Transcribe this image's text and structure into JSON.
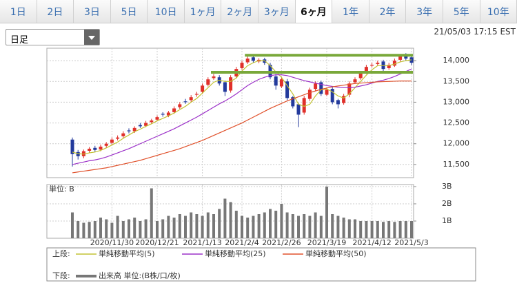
{
  "tabs": {
    "items": [
      "1日",
      "2日",
      "3日",
      "5日",
      "10日",
      "1ヶ月",
      "2ヶ月",
      "3ヶ月",
      "6ヶ月",
      "1年",
      "2年",
      "3年",
      "5年",
      "10年"
    ],
    "selected": 8
  },
  "dropdown": "日足",
  "timestamp": "21/05/03 17:15 EST",
  "legend": {
    "upper": "上段:",
    "lower": "下段:"
  },
  "chart_data": [
    {
      "type": "candlestick",
      "open": [
        12100,
        11800,
        11700,
        11830,
        11900,
        11860,
        11950,
        12020,
        12120,
        12180,
        12320,
        12300,
        12450,
        12430,
        12520,
        12580,
        12720,
        12680,
        12760,
        12880,
        13020,
        13050,
        13180,
        13250,
        13420,
        13580,
        13600,
        13480,
        13280,
        13620,
        13820,
        13960,
        14080,
        13980,
        14030,
        13900,
        13620,
        13380,
        13500,
        13120,
        12950,
        12750,
        13080,
        13320,
        13480,
        13180,
        13320,
        13050,
        12980,
        13180,
        13480,
        13580,
        13720,
        13880,
        13920,
        13980,
        13820,
        13880,
        14020,
        14120,
        14080
      ],
      "high": [
        12150,
        11850,
        11860,
        11920,
        11950,
        11980,
        12040,
        12150,
        12200,
        12300,
        12370,
        12420,
        12500,
        12550,
        12600,
        12680,
        12760,
        12790,
        12900,
        13000,
        13080,
        13170,
        13250,
        13450,
        13600,
        13680,
        13650,
        13520,
        13650,
        13850,
        14000,
        14120,
        14130,
        14060,
        14070,
        13950,
        13680,
        13600,
        13560,
        13150,
        12980,
        13150,
        13350,
        13500,
        13520,
        13350,
        13360,
        13080,
        13200,
        13500,
        13600,
        13750,
        13900,
        13950,
        14000,
        14020,
        13950,
        14050,
        14150,
        14180,
        14120
      ],
      "low": [
        11450,
        11620,
        11650,
        11780,
        11800,
        11820,
        11900,
        11970,
        12080,
        12130,
        12250,
        12260,
        12380,
        12400,
        12480,
        12540,
        12650,
        12640,
        12720,
        12840,
        12960,
        13000,
        13130,
        13200,
        13380,
        13540,
        13400,
        13150,
        13230,
        13580,
        13780,
        13920,
        13950,
        13940,
        13900,
        13550,
        13300,
        13340,
        13050,
        12850,
        12400,
        12700,
        13030,
        13280,
        13150,
        13150,
        12950,
        12850,
        12940,
        13120,
        13450,
        13540,
        13680,
        13840,
        13880,
        13750,
        13780,
        13850,
        13980,
        14000,
        13900
      ],
      "close": [
        11750,
        11700,
        11820,
        11880,
        11850,
        11930,
        12000,
        12100,
        12150,
        12250,
        12300,
        12380,
        12420,
        12500,
        12560,
        12640,
        12700,
        12750,
        12850,
        12950,
        13000,
        13120,
        13200,
        13400,
        13550,
        13620,
        13450,
        13250,
        13600,
        13800,
        13950,
        14050,
        14000,
        14020,
        13950,
        13600,
        13400,
        13550,
        13100,
        12900,
        12700,
        13100,
        13300,
        13450,
        13200,
        13300,
        13000,
        12950,
        13150,
        13450,
        13550,
        13700,
        13850,
        13900,
        13950,
        13800,
        13900,
        14000,
        14100,
        14050,
        13950
      ],
      "up_color": "#e0302a",
      "down_color": "#233a9c",
      "series": [
        {
          "name": "単純移動平均(5)",
          "color": "#c2c232",
          "values": [
            11800,
            11760,
            11750,
            11780,
            11800,
            11840,
            11900,
            11970,
            12040,
            12130,
            12210,
            12290,
            12350,
            12420,
            12480,
            12550,
            12610,
            12670,
            12740,
            12820,
            12900,
            13000,
            13090,
            13220,
            13350,
            13480,
            13530,
            13500,
            13500,
            13580,
            13750,
            13880,
            13950,
            14000,
            14000,
            13880,
            13730,
            13600,
            13400,
            13200,
            12950,
            12900,
            12950,
            13150,
            13300,
            13320,
            13250,
            13150,
            13100,
            13200,
            13350,
            13500,
            13650,
            13780,
            13880,
            13880,
            13880,
            13920,
            13970,
            14000,
            14020
          ]
        },
        {
          "name": "単純移動平均(25)",
          "color": "#9b30c8",
          "values": [
            11500,
            11530,
            11560,
            11590,
            11610,
            11640,
            11680,
            11730,
            11780,
            11830,
            11880,
            11940,
            12000,
            12060,
            12120,
            12180,
            12240,
            12300,
            12360,
            12430,
            12500,
            12570,
            12640,
            12720,
            12800,
            12880,
            12960,
            13030,
            13110,
            13200,
            13300,
            13400,
            13480,
            13550,
            13600,
            13640,
            13660,
            13660,
            13640,
            13600,
            13560,
            13520,
            13490,
            13460,
            13430,
            13400,
            13380,
            13360,
            13350,
            13350,
            13360,
            13390,
            13420,
            13460,
            13500,
            13530,
            13570,
            13620,
            13680,
            13740,
            13800
          ]
        },
        {
          "name": "単純移動平均(50)",
          "color": "#e0502a",
          "values": [
            11300,
            11320,
            11340,
            11360,
            11380,
            11400,
            11420,
            11450,
            11480,
            11510,
            11540,
            11570,
            11600,
            11640,
            11680,
            11720,
            11760,
            11800,
            11840,
            11880,
            11930,
            11980,
            12030,
            12080,
            12140,
            12200,
            12260,
            12320,
            12380,
            12440,
            12500,
            12570,
            12640,
            12710,
            12780,
            12850,
            12910,
            12970,
            13030,
            13080,
            13130,
            13180,
            13230,
            13270,
            13310,
            13340,
            13370,
            13390,
            13410,
            13430,
            13450,
            13460,
            13470,
            13480,
            13490,
            13495,
            13500,
            13505,
            13510,
            13510,
            13510
          ]
        }
      ],
      "hlines": [
        {
          "value": 14130,
          "from": 31,
          "to": 60,
          "color": "#79a83a"
        },
        {
          "value": 13720,
          "from": 25,
          "to": 60,
          "color": "#79a83a"
        }
      ],
      "ylim": [
        11200,
        14300
      ],
      "yticks": [
        {
          "value": 11500,
          "label": "11,500"
        },
        {
          "value": 12000,
          "label": "12,000"
        },
        {
          "value": 12500,
          "label": "12,500"
        },
        {
          "value": 13000,
          "label": "13,000"
        },
        {
          "value": 13500,
          "label": "13,500"
        },
        {
          "value": 14000,
          "label": "14,000"
        }
      ],
      "grid": true
    },
    {
      "type": "bar",
      "unit_label": "単位: B",
      "categories": [
        null,
        null,
        null,
        null,
        null,
        null,
        null,
        "2020/11/30",
        null,
        null,
        null,
        null,
        null,
        null,
        null,
        "2020/12/21",
        null,
        null,
        null,
        null,
        null,
        null,
        null,
        "2021/1/13",
        null,
        null,
        null,
        null,
        null,
        null,
        "2021/2/4",
        null,
        null,
        null,
        null,
        null,
        null,
        "2021/2/26",
        null,
        null,
        null,
        null,
        null,
        null,
        null,
        "2021/3/19",
        null,
        null,
        null,
        null,
        null,
        null,
        null,
        "2021/4/12",
        null,
        null,
        null,
        null,
        null,
        null,
        "2021/5/3"
      ],
      "name": "出来高 単位:(B株/口/枚)",
      "color": "#777777",
      "values": [
        1.5,
        1.0,
        0.9,
        0.95,
        1.0,
        1.2,
        1.1,
        0.9,
        1.3,
        1.0,
        1.1,
        1.2,
        1.0,
        1.1,
        2.9,
        1.0,
        1.1,
        1.3,
        1.2,
        1.4,
        1.3,
        1.5,
        1.4,
        1.3,
        1.5,
        1.4,
        1.7,
        2.3,
        2.1,
        1.6,
        1.3,
        1.2,
        1.3,
        1.4,
        1.5,
        1.7,
        1.6,
        2.0,
        1.5,
        1.4,
        1.3,
        1.4,
        1.3,
        1.5,
        1.3,
        3.0,
        1.4,
        1.3,
        1.2,
        1.1,
        1.1,
        1.0,
        1.0,
        1.0,
        1.0,
        0.95,
        1.0,
        0.95,
        1.0,
        1.0,
        1.0
      ],
      "ylim": [
        0,
        3.1
      ],
      "yticks": [
        {
          "value": 1,
          "label": "1B"
        },
        {
          "value": 2,
          "label": "2B"
        },
        {
          "value": 3,
          "label": "3B"
        }
      ],
      "grid": true
    }
  ]
}
